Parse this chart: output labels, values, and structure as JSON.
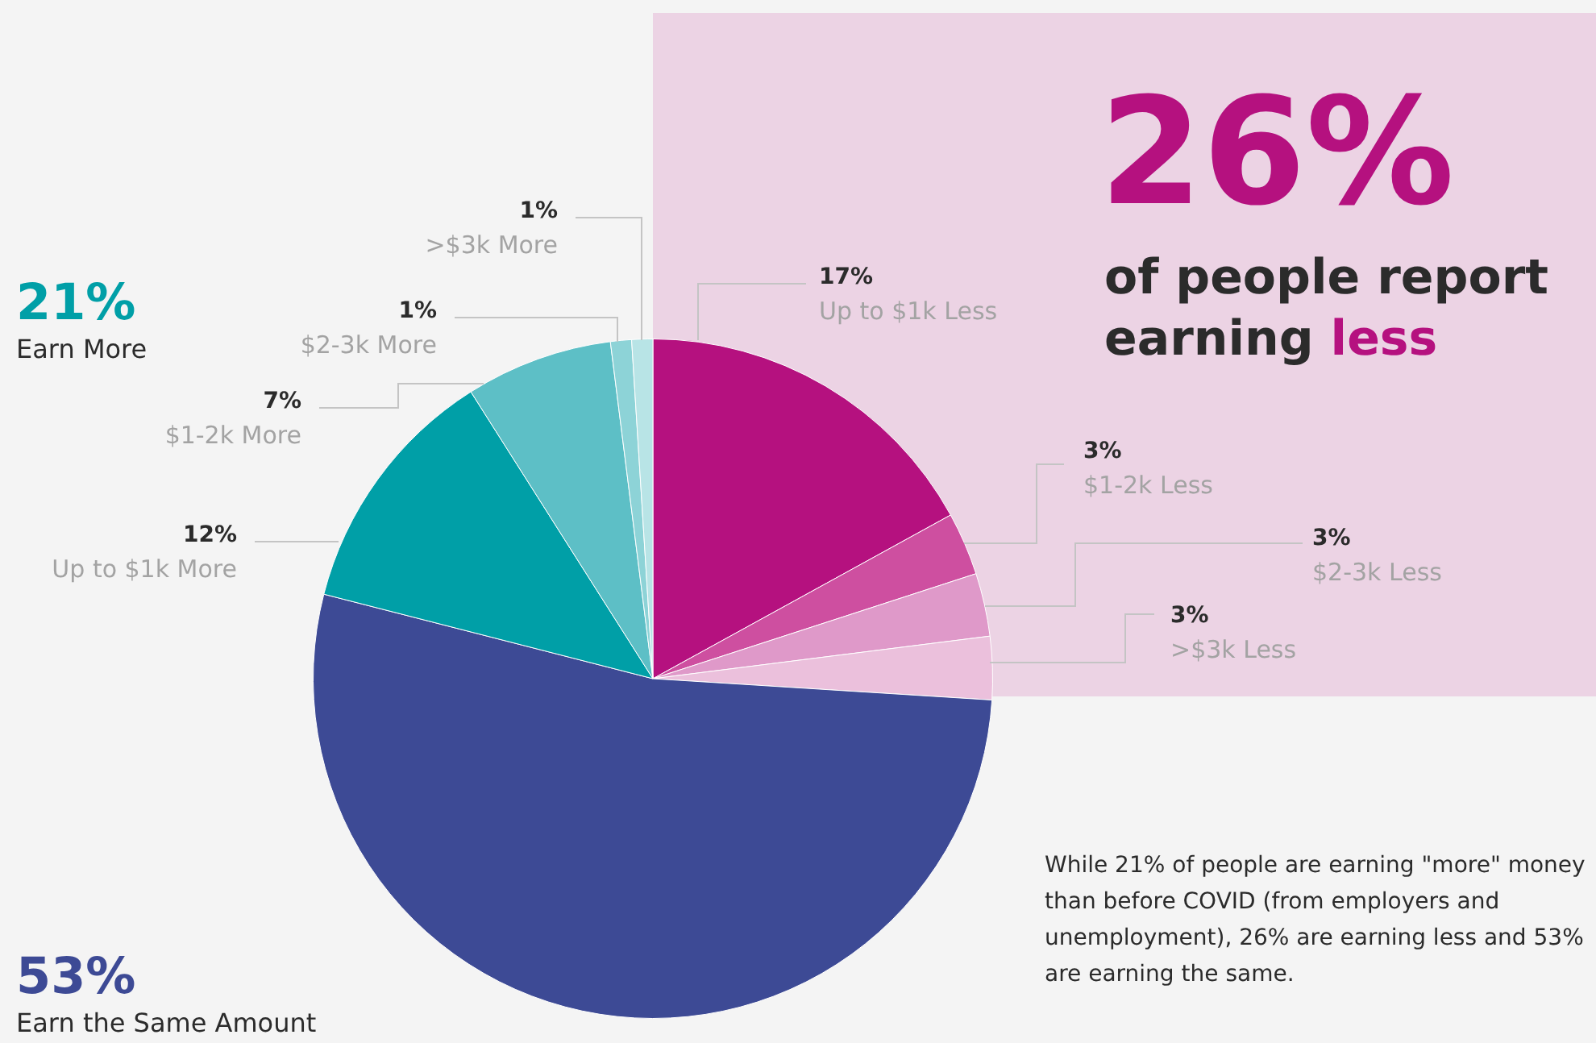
{
  "chart_data": {
    "type": "pie",
    "categories": [
      "Up to $1k Less",
      "$1-2k Less",
      "$2-3k Less",
      ">$3k Less",
      "Earn the Same Amount",
      "Up to $1k More",
      "$1-2k More",
      "$2-3k More",
      ">$3k More"
    ],
    "values": [
      17,
      3,
      3,
      3,
      53,
      12,
      7,
      1,
      1
    ],
    "value_labels": [
      "17%",
      "3%",
      "3%",
      "3%",
      "53%",
      "12%",
      "7%",
      "1%",
      "1%"
    ],
    "colors": [
      "#b5117f",
      "#ce4fa0",
      "#df99c9",
      "#ebc0dc",
      "#3d4a95",
      "#009fa7",
      "#5dbfc6",
      "#8dd3d7",
      "#b8e4e6"
    ],
    "annotations": [
      "21%",
      "Earn More",
      "26%",
      "of people report earning less",
      "While 21% of people are earning \"more\" money than before COVID (from employers and unemployment), 26% are earning less and 53% are earning the same."
    ],
    "legend": false
  }
}
